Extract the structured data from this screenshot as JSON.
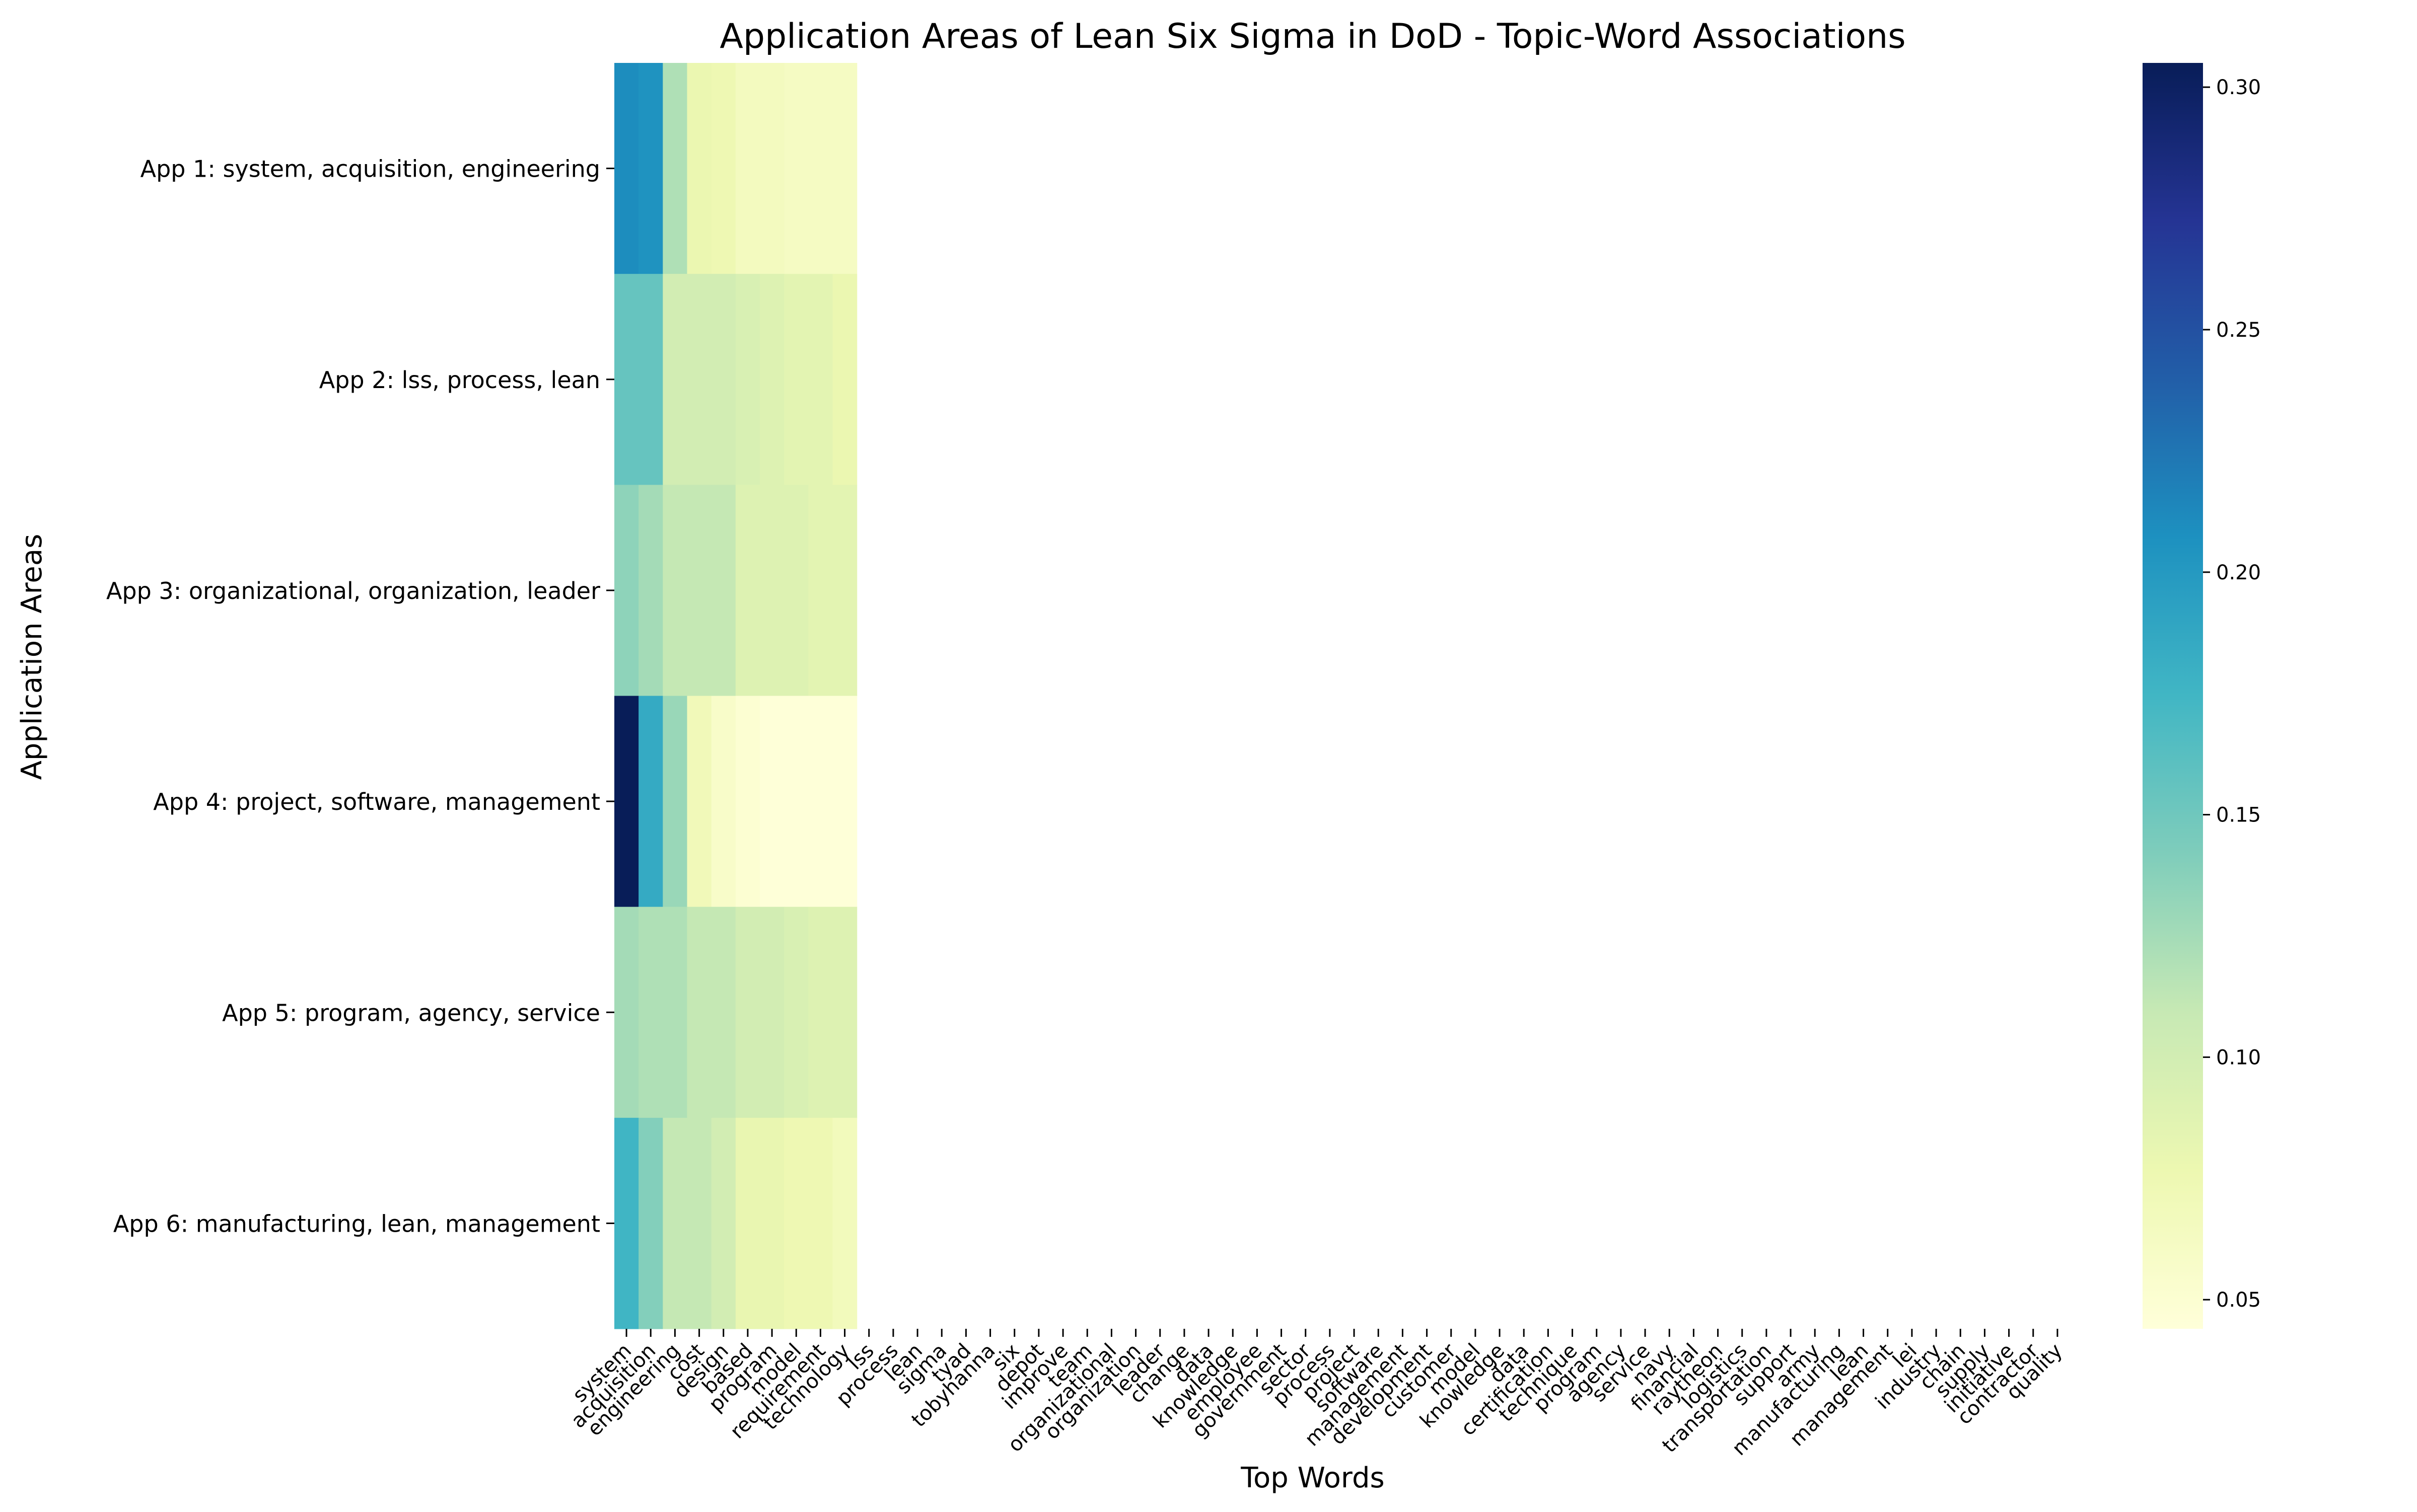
{
  "chart_data": {
    "type": "heatmap",
    "title": "Application Areas of Lean Six Sigma in DoD - Topic-Word Associations",
    "xlabel": "Top Words",
    "ylabel": "Application Areas",
    "colormap": "YlGnBu",
    "clim": [
      0.044,
      0.305
    ],
    "colorbar_ticks": [
      "0.05",
      "0.10",
      "0.15",
      "0.20",
      "0.25",
      "0.30"
    ],
    "rows": [
      "App 1: system, acquisition, engineering",
      "App 2: lss, process, lean",
      "App 3: organizational, organization, leader",
      "App 4: project, software, management",
      "App 5: program, agency, service",
      "App 6: manufacturing, lean, management"
    ],
    "columns": [
      "system",
      "acquisition",
      "engineering",
      "cost",
      "design",
      "based",
      "program",
      "model",
      "requirement",
      "technology",
      "lss",
      "process",
      "lean",
      "sigma",
      "tyad",
      "tobyhanna",
      "six",
      "depot",
      "improve",
      "team",
      "organizational",
      "organization",
      "leader",
      "change",
      "data",
      "knowledge",
      "employee",
      "government",
      "sector",
      "process",
      "project",
      "software",
      "management",
      "development",
      "customer",
      "model",
      "knowledge",
      "data",
      "certification",
      "technique",
      "program",
      "agency",
      "service",
      "navy",
      "financial",
      "raytheon",
      "logistics",
      "transportation",
      "support",
      "army",
      "manufacturing",
      "lean",
      "management",
      "lei",
      "industry",
      "chain",
      "supply",
      "initiative",
      "contractor",
      "quality"
    ],
    "values": [
      [
        0.21,
        0.205,
        0.12,
        0.078,
        0.075,
        0.065,
        0.065,
        0.062,
        0.062,
        0.062
      ],
      [
        0.155,
        0.155,
        0.1,
        0.1,
        0.1,
        0.095,
        0.09,
        0.085,
        0.085,
        0.078
      ],
      [
        0.135,
        0.125,
        0.11,
        0.11,
        0.11,
        0.09,
        0.09,
        0.09,
        0.085,
        0.085
      ],
      [
        0.305,
        0.185,
        0.13,
        0.07,
        0.057,
        0.05,
        0.045,
        0.045,
        0.045,
        0.045
      ],
      [
        0.125,
        0.12,
        0.12,
        0.11,
        0.11,
        0.1,
        0.1,
        0.095,
        0.09,
        0.09
      ],
      [
        0.175,
        0.14,
        0.11,
        0.11,
        0.1,
        0.08,
        0.08,
        0.075,
        0.075,
        0.068
      ]
    ]
  }
}
